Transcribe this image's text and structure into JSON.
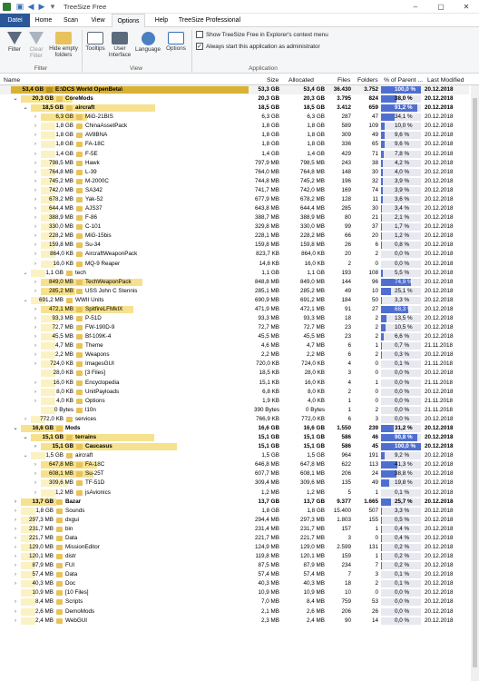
{
  "window": {
    "title": "TreeSize Free"
  },
  "tabs": [
    "Datei",
    "Home",
    "Scan",
    "View",
    "Options",
    "Help",
    "TreeSize Professional"
  ],
  "ribbon": {
    "buttons": [
      {
        "label": "Filter",
        "icon": "funnel-icon"
      },
      {
        "label": "Clear\nFilter",
        "icon": "clear-filter-icon"
      },
      {
        "label": "Hide empty\nfolders",
        "icon": "hide-empty-folders-icon"
      },
      {
        "label": "Tooltips",
        "icon": "tooltips-icon"
      },
      {
        "label": "User\nInterface",
        "icon": "user-interface-icon"
      },
      {
        "label": "Language",
        "icon": "globe-icon"
      },
      {
        "label": "Options",
        "icon": "options-icon"
      }
    ],
    "groups": [
      "Filter",
      "View",
      "Application"
    ],
    "checks": [
      {
        "label": "Show TreeSize Free in Explorer's context menu",
        "checked": false
      },
      {
        "label": "Always start this application as administrator",
        "checked": true
      }
    ]
  },
  "columns": [
    "Name",
    "Size",
    "Allocated",
    "Files",
    "Folders",
    "% of Parent ...",
    "Last Modified"
  ],
  "rows": [
    {
      "lvl": 0,
      "exp": "",
      "size_lbl": "53,4 GB",
      "name": "E:\\DCS World OpenBeta\\",
      "size": "53,3 GB",
      "alloc": "53,4 GB",
      "files": "36.430",
      "folders": "3.752",
      "pct": "100,0 %",
      "p": 100,
      "mod": "20.12.2018",
      "hl": true,
      "bold": true
    },
    {
      "lvl": 1,
      "exp": "v",
      "size_lbl": "20,3 GB",
      "name": "CoreMods",
      "size": "20,3 GB",
      "alloc": "20,3 GB",
      "files": "3.795",
      "folders": "824",
      "pct": "38,0 %",
      "p": 38,
      "mod": "20.12.2018",
      "bold": true
    },
    {
      "lvl": 2,
      "exp": "v",
      "size_lbl": "18,5 GB",
      "name": "aircraft",
      "size": "18,5 GB",
      "alloc": "18,5 GB",
      "files": "3.412",
      "folders": "659",
      "pct": "91,2 %",
      "p": 91.2,
      "mod": "20.12.2018",
      "bold": true
    },
    {
      "lvl": 3,
      "exp": ">",
      "size_lbl": "6,3 GB",
      "name": "MiG-21BIS",
      "size": "6,3 GB",
      "alloc": "6,3 GB",
      "files": "287",
      "folders": "47",
      "pct": "34,1 %",
      "p": 34.1,
      "mod": "20.12.2018"
    },
    {
      "lvl": 3,
      "exp": ">",
      "size_lbl": "1,8 GB",
      "name": "ChinaAssetPack",
      "size": "1,8 GB",
      "alloc": "1,8 GB",
      "files": "589",
      "folders": "109",
      "pct": "10,0 %",
      "p": 10,
      "mod": "20.12.2018"
    },
    {
      "lvl": 3,
      "exp": ">",
      "size_lbl": "1,8 GB",
      "name": "AV8BNA",
      "size": "1,8 GB",
      "alloc": "1,8 GB",
      "files": "309",
      "folders": "49",
      "pct": "9,6 %",
      "p": 9.6,
      "mod": "20.12.2018"
    },
    {
      "lvl": 3,
      "exp": ">",
      "size_lbl": "1,8 GB",
      "name": "FA-18C",
      "size": "1,8 GB",
      "alloc": "1,8 GB",
      "files": "336",
      "folders": "65",
      "pct": "9,6 %",
      "p": 9.6,
      "mod": "20.12.2018"
    },
    {
      "lvl": 3,
      "exp": ">",
      "size_lbl": "1,4 GB",
      "name": "F-5E",
      "size": "1,4 GB",
      "alloc": "1,4 GB",
      "files": "429",
      "folders": "71",
      "pct": "7,8 %",
      "p": 7.8,
      "mod": "20.12.2018"
    },
    {
      "lvl": 3,
      "exp": ">",
      "size_lbl": "798,5 MB",
      "name": "Hawk",
      "size": "797,9 MB",
      "alloc": "798,5 MB",
      "files": "243",
      "folders": "38",
      "pct": "4,2 %",
      "p": 4.2,
      "mod": "20.12.2018"
    },
    {
      "lvl": 3,
      "exp": ">",
      "size_lbl": "764,8 MB",
      "name": "L-39",
      "size": "764,0 MB",
      "alloc": "764,8 MB",
      "files": "148",
      "folders": "30",
      "pct": "4,0 %",
      "p": 4,
      "mod": "20.12.2018"
    },
    {
      "lvl": 3,
      "exp": ">",
      "size_lbl": "745,2 MB",
      "name": "M-2000C",
      "size": "744,8 MB",
      "alloc": "745,2 MB",
      "files": "196",
      "folders": "32",
      "pct": "3,9 %",
      "p": 3.9,
      "mod": "20.12.2018"
    },
    {
      "lvl": 3,
      "exp": ">",
      "size_lbl": "742,0 MB",
      "name": "SA342",
      "size": "741,7 MB",
      "alloc": "742,0 MB",
      "files": "169",
      "folders": "74",
      "pct": "3,9 %",
      "p": 3.9,
      "mod": "20.12.2018"
    },
    {
      "lvl": 3,
      "exp": ">",
      "size_lbl": "678,2 MB",
      "name": "Yak-52",
      "size": "677,9 MB",
      "alloc": "678,2 MB",
      "files": "128",
      "folders": "11",
      "pct": "3,6 %",
      "p": 3.6,
      "mod": "20.12.2018"
    },
    {
      "lvl": 3,
      "exp": ">",
      "size_lbl": "644,4 MB",
      "name": "AJS37",
      "size": "643,8 MB",
      "alloc": "644,4 MB",
      "files": "285",
      "folders": "30",
      "pct": "3,4 %",
      "p": 3.4,
      "mod": "20.12.2018"
    },
    {
      "lvl": 3,
      "exp": ">",
      "size_lbl": "388,9 MB",
      "name": "F-86",
      "size": "388,7 MB",
      "alloc": "388,9 MB",
      "files": "80",
      "folders": "21",
      "pct": "2,1 %",
      "p": 2.1,
      "mod": "20.12.2018"
    },
    {
      "lvl": 3,
      "exp": ">",
      "size_lbl": "330,0 MB",
      "name": "C-101",
      "size": "329,8 MB",
      "alloc": "330,0 MB",
      "files": "99",
      "folders": "37",
      "pct": "1,7 %",
      "p": 1.7,
      "mod": "20.12.2018"
    },
    {
      "lvl": 3,
      "exp": ">",
      "size_lbl": "228,2 MB",
      "name": "MiG-15bis",
      "size": "228,1 MB",
      "alloc": "228,2 MB",
      "files": "66",
      "folders": "20",
      "pct": "1,2 %",
      "p": 1.2,
      "mod": "20.12.2018"
    },
    {
      "lvl": 3,
      "exp": ">",
      "size_lbl": "159,8 MB",
      "name": "Su-34",
      "size": "159,8 MB",
      "alloc": "159,8 MB",
      "files": "26",
      "folders": "6",
      "pct": "0,8 %",
      "p": 0.8,
      "mod": "20.12.2018"
    },
    {
      "lvl": 3,
      "exp": ">",
      "size_lbl": "864,0 KB",
      "name": "AircraftWeaponPack",
      "size": "823,7 KB",
      "alloc": "864,0 KB",
      "files": "20",
      "folders": "2",
      "pct": "0,0 %",
      "p": 0,
      "mod": "20.12.2018"
    },
    {
      "lvl": 3,
      "exp": ">",
      "size_lbl": "16,0 KB",
      "name": "MQ-9 Reaper",
      "size": "14,8 KB",
      "alloc": "16,0 KB",
      "files": "2",
      "folders": "0",
      "pct": "0,0 %",
      "p": 0,
      "mod": "20.12.2018"
    },
    {
      "lvl": 2,
      "exp": "v",
      "size_lbl": "1,1 GB",
      "name": "tech",
      "size": "1,1 GB",
      "alloc": "1,1 GB",
      "files": "193",
      "folders": "108",
      "pct": "5,5 %",
      "p": 5.5,
      "mod": "20.12.2018"
    },
    {
      "lvl": 3,
      "exp": ">",
      "size_lbl": "849,0 MB",
      "name": "TechWeaponPack",
      "size": "848,8 MB",
      "alloc": "849,0 MB",
      "files": "144",
      "folders": "96",
      "pct": "74,9 %",
      "p": 74.9,
      "mod": "20.12.2018"
    },
    {
      "lvl": 3,
      "exp": ">",
      "size_lbl": "285,2 MB",
      "name": "USS John C Stennis",
      "size": "285,1 MB",
      "alloc": "285,2 MB",
      "files": "49",
      "folders": "10",
      "pct": "25,1 %",
      "p": 25.1,
      "mod": "20.12.2018"
    },
    {
      "lvl": 2,
      "exp": "v",
      "size_lbl": "691,2 MB",
      "name": "WWII Units",
      "size": "690,9 MB",
      "alloc": "691,2 MB",
      "files": "184",
      "folders": "50",
      "pct": "3,3 %",
      "p": 3.3,
      "mod": "20.12.2018"
    },
    {
      "lvl": 3,
      "exp": ">",
      "size_lbl": "472,1 MB",
      "name": "SpitfireLFMkIX",
      "size": "471,9 MB",
      "alloc": "472,1 MB",
      "files": "91",
      "folders": "27",
      "pct": "68,3 %",
      "p": 68.3,
      "mod": "20.12.2018"
    },
    {
      "lvl": 3,
      "exp": ">",
      "size_lbl": "93,3 MB",
      "name": "P-51D",
      "size": "93,3 MB",
      "alloc": "93,3 MB",
      "files": "18",
      "folders": "2",
      "pct": "13,5 %",
      "p": 13.5,
      "mod": "20.12.2018"
    },
    {
      "lvl": 3,
      "exp": ">",
      "size_lbl": "72,7 MB",
      "name": "FW-190D-9",
      "size": "72,7 MB",
      "alloc": "72,7 MB",
      "files": "23",
      "folders": "2",
      "pct": "10,5 %",
      "p": 10.5,
      "mod": "20.12.2018"
    },
    {
      "lvl": 3,
      "exp": ">",
      "size_lbl": "45,5 MB",
      "name": "Bf-109K-4",
      "size": "45,5 MB",
      "alloc": "45,5 MB",
      "files": "23",
      "folders": "2",
      "pct": "6,6 %",
      "p": 6.6,
      "mod": "20.12.2018"
    },
    {
      "lvl": 3,
      "exp": ">",
      "size_lbl": "4,7 MB",
      "name": "Theme",
      "size": "4,6 MB",
      "alloc": "4,7 MB",
      "files": "6",
      "folders": "1",
      "pct": "0,7 %",
      "p": 0.7,
      "mod": "21.11.2018"
    },
    {
      "lvl": 3,
      "exp": ">",
      "size_lbl": "2,2 MB",
      "name": "Weapons",
      "size": "2,2 MB",
      "alloc": "2,2 MB",
      "files": "6",
      "folders": "2",
      "pct": "0,3 %",
      "p": 0.3,
      "mod": "20.12.2018"
    },
    {
      "lvl": 3,
      "exp": ">",
      "size_lbl": "724,0 KB",
      "name": "ImagesGUI",
      "size": "720,0 KB",
      "alloc": "724,0 KB",
      "files": "4",
      "folders": "0",
      "pct": "0,1 %",
      "p": 0.1,
      "mod": "21.11.2018"
    },
    {
      "lvl": 3,
      "exp": "",
      "size_lbl": "28,0 KB",
      "name": "[3 Files]",
      "size": "18,5 KB",
      "alloc": "28,0 KB",
      "files": "3",
      "folders": "0",
      "pct": "0,0 %",
      "p": 0,
      "mod": "20.12.2018"
    },
    {
      "lvl": 3,
      "exp": ">",
      "size_lbl": "16,0 KB",
      "name": "Encyclopedia",
      "size": "15,1 KB",
      "alloc": "16,0 KB",
      "files": "4",
      "folders": "1",
      "pct": "0,0 %",
      "p": 0,
      "mod": "21.11.2018"
    },
    {
      "lvl": 3,
      "exp": ">",
      "size_lbl": "8,0 KB",
      "name": "UnitPayloads",
      "size": "6,8 KB",
      "alloc": "8,0 KB",
      "files": "2",
      "folders": "0",
      "pct": "0,0 %",
      "p": 0,
      "mod": "20.12.2018"
    },
    {
      "lvl": 3,
      "exp": ">",
      "size_lbl": "4,0 KB",
      "name": "Options",
      "size": "1,9 KB",
      "alloc": "4,0 KB",
      "files": "1",
      "folders": "0",
      "pct": "0,0 %",
      "p": 0,
      "mod": "21.11.2018"
    },
    {
      "lvl": 3,
      "exp": "",
      "size_lbl": "0 Bytes",
      "name": "l10n",
      "size": "390 Bytes",
      "alloc": "0 Bytes",
      "files": "1",
      "folders": "2",
      "pct": "0,0 %",
      "p": 0,
      "mod": "21.11.2018"
    },
    {
      "lvl": 2,
      "exp": ">",
      "size_lbl": "772,0 KB",
      "name": "services",
      "size": "766,9 KB",
      "alloc": "772,0 KB",
      "files": "6",
      "folders": "3",
      "pct": "0,0 %",
      "p": 0,
      "mod": "20.12.2018"
    },
    {
      "lvl": 1,
      "exp": "v",
      "size_lbl": "16,6 GB",
      "name": "Mods",
      "size": "16,6 GB",
      "alloc": "16,6 GB",
      "files": "1.550",
      "folders": "239",
      "pct": "31,2 %",
      "p": 31.2,
      "mod": "20.12.2018",
      "bold": true
    },
    {
      "lvl": 2,
      "exp": "v",
      "size_lbl": "15,1 GB",
      "name": "terrains",
      "size": "15,1 GB",
      "alloc": "15,1 GB",
      "files": "586",
      "folders": "46",
      "pct": "90,8 %",
      "p": 90.8,
      "mod": "20.12.2018",
      "bold": true
    },
    {
      "lvl": 3,
      "exp": ">",
      "size_lbl": "15,1 GB",
      "name": "Caucasus",
      "size": "15,1 GB",
      "alloc": "15,1 GB",
      "files": "586",
      "folders": "45",
      "pct": "100,0 %",
      "p": 100,
      "mod": "20.12.2018",
      "bold": true
    },
    {
      "lvl": 2,
      "exp": "v",
      "size_lbl": "1,5 GB",
      "name": "aircraft",
      "size": "1,5 GB",
      "alloc": "1,5 GB",
      "files": "964",
      "folders": "191",
      "pct": "9,2 %",
      "p": 9.2,
      "mod": "20.12.2018"
    },
    {
      "lvl": 3,
      "exp": ">",
      "size_lbl": "647,8 MB",
      "name": "FA-18C",
      "size": "646,8 MB",
      "alloc": "647,8 MB",
      "files": "622",
      "folders": "113",
      "pct": "41,3 %",
      "p": 41.3,
      "mod": "20.12.2018"
    },
    {
      "lvl": 3,
      "exp": ">",
      "size_lbl": "608,1 MB",
      "name": "Su-25T",
      "size": "607,7 MB",
      "alloc": "608,1 MB",
      "files": "206",
      "folders": "24",
      "pct": "38,8 %",
      "p": 38.8,
      "mod": "20.12.2018"
    },
    {
      "lvl": 3,
      "exp": ">",
      "size_lbl": "309,6 MB",
      "name": "TF-51D",
      "size": "309,4 MB",
      "alloc": "309,6 MB",
      "files": "135",
      "folders": "49",
      "pct": "19,8 %",
      "p": 19.8,
      "mod": "20.12.2018"
    },
    {
      "lvl": 3,
      "exp": ">",
      "size_lbl": "1,2 MB",
      "name": "jsAvionics",
      "size": "1,2 MB",
      "alloc": "1,2 MB",
      "files": "5",
      "folders": "1",
      "pct": "0,1 %",
      "p": 0.1,
      "mod": "20.12.2018"
    },
    {
      "lvl": 1,
      "exp": ">",
      "size_lbl": "13,7 GB",
      "name": "Bazar",
      "size": "13,7 GB",
      "alloc": "13,7 GB",
      "files": "9.377",
      "folders": "1.665",
      "pct": "25,7 %",
      "p": 25.7,
      "mod": "20.12.2018",
      "bold": true
    },
    {
      "lvl": 1,
      "exp": ">",
      "size_lbl": "1,8 GB",
      "name": "Sounds",
      "size": "1,8 GB",
      "alloc": "1,8 GB",
      "files": "15.400",
      "folders": "507",
      "pct": "3,3 %",
      "p": 3.3,
      "mod": "20.12.2018"
    },
    {
      "lvl": 1,
      "exp": ">",
      "size_lbl": "297,3 MB",
      "name": "dxgui",
      "size": "294,4 MB",
      "alloc": "297,3 MB",
      "files": "1.803",
      "folders": "155",
      "pct": "0,5 %",
      "p": 0.5,
      "mod": "20.12.2018"
    },
    {
      "lvl": 1,
      "exp": ">",
      "size_lbl": "231,7 MB",
      "name": "bin",
      "size": "231,4 MB",
      "alloc": "231,7 MB",
      "files": "157",
      "folders": "1",
      "pct": "0,4 %",
      "p": 0.4,
      "mod": "20.12.2018"
    },
    {
      "lvl": 1,
      "exp": ">",
      "size_lbl": "221,7 MB",
      "name": "Data",
      "size": "221,7 MB",
      "alloc": "221,7 MB",
      "files": "3",
      "folders": "0",
      "pct": "0,4 %",
      "p": 0.4,
      "mod": "20.12.2018"
    },
    {
      "lvl": 1,
      "exp": ">",
      "size_lbl": "129,0 MB",
      "name": "MissionEditor",
      "size": "124,9 MB",
      "alloc": "129,0 MB",
      "files": "2.599",
      "folders": "131",
      "pct": "0,2 %",
      "p": 0.2,
      "mod": "20.12.2018"
    },
    {
      "lvl": 1,
      "exp": ">",
      "size_lbl": "120,1 MB",
      "name": "distr",
      "size": "119,8 MB",
      "alloc": "120,1 MB",
      "files": "159",
      "folders": "1",
      "pct": "0,2 %",
      "p": 0.2,
      "mod": "20.12.2018"
    },
    {
      "lvl": 1,
      "exp": ">",
      "size_lbl": "87,9 MB",
      "name": "FUI",
      "size": "87,5 MB",
      "alloc": "87,9 MB",
      "files": "234",
      "folders": "7",
      "pct": "0,2 %",
      "p": 0.2,
      "mod": "20.12.2018"
    },
    {
      "lvl": 1,
      "exp": ">",
      "size_lbl": "57,4 MB",
      "name": "Data",
      "size": "57,4 MB",
      "alloc": "57,4 MB",
      "files": "7",
      "folders": "3",
      "pct": "0,1 %",
      "p": 0.1,
      "mod": "20.12.2018"
    },
    {
      "lvl": 1,
      "exp": ">",
      "size_lbl": "40,3 MB",
      "name": "Doc",
      "size": "40,3 MB",
      "alloc": "40,3 MB",
      "files": "18",
      "folders": "2",
      "pct": "0,1 %",
      "p": 0.1,
      "mod": "20.12.2018"
    },
    {
      "lvl": 1,
      "exp": "",
      "size_lbl": "10,9 MB",
      "name": "[10 Files]",
      "size": "10,9 MB",
      "alloc": "10,9 MB",
      "files": "10",
      "folders": "0",
      "pct": "0,0 %",
      "p": 0,
      "mod": "20.12.2018"
    },
    {
      "lvl": 1,
      "exp": ">",
      "size_lbl": "8,4 MB",
      "name": "Scripts",
      "size": "7,0 MB",
      "alloc": "8,4 MB",
      "files": "759",
      "folders": "53",
      "pct": "0,0 %",
      "p": 0,
      "mod": "20.12.2018"
    },
    {
      "lvl": 1,
      "exp": ">",
      "size_lbl": "2,6 MB",
      "name": "DemoMods",
      "size": "2,1 MB",
      "alloc": "2,6 MB",
      "files": "206",
      "folders": "26",
      "pct": "0,0 %",
      "p": 0,
      "mod": "20.12.2018"
    },
    {
      "lvl": 1,
      "exp": ">",
      "size_lbl": "2,4 MB",
      "name": "WebGUI",
      "size": "2,3 MB",
      "alloc": "2,4 MB",
      "files": "90",
      "folders": "14",
      "pct": "0,0 %",
      "p": 0,
      "mod": "20.12.2018"
    }
  ]
}
